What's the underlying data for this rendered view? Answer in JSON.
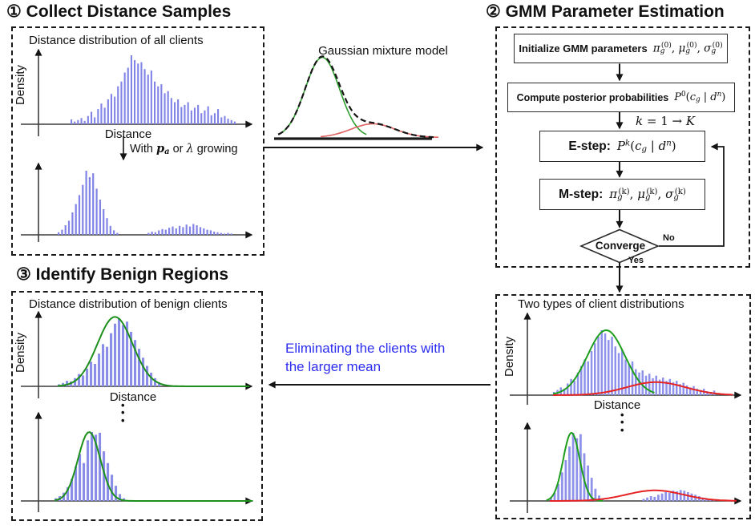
{
  "panels": {
    "collect": {
      "title": "① Collect Distance Samples",
      "plot_label": "Distance distribution of all clients",
      "ylabel": "Density",
      "xlabel": "Distance",
      "transition": [
        {
          "t": "With ",
          "m": "sans"
        },
        {
          "t": "p",
          "m": "bi"
        },
        {
          "t": "a",
          "m": "bsub"
        },
        {
          "t": " or ",
          "m": "sans"
        },
        {
          "t": "λ",
          "m": "i"
        },
        {
          "t": " growing",
          "m": "sans"
        }
      ]
    },
    "mixture": {
      "title": "Gaussian mixture model"
    },
    "gmm": {
      "title": "② GMM Parameter Estimation",
      "box1_label": "Initialize GMM parameters",
      "box1_formula": [
        {
          "t": "π",
          "m": "i"
        },
        {
          "t": "g",
          "m": "sub"
        },
        {
          "t": "(0)",
          "m": "sups"
        },
        {
          "t": ", ",
          "m": "n"
        },
        {
          "t": "μ",
          "m": "i"
        },
        {
          "t": "g",
          "m": "sub"
        },
        {
          "t": "(0)",
          "m": "sups"
        },
        {
          "t": ", ",
          "m": "n"
        },
        {
          "t": "σ",
          "m": "i"
        },
        {
          "t": "g",
          "m": "sub"
        },
        {
          "t": "(0)",
          "m": "sups"
        }
      ],
      "box2_label": "Compute posterior probabilities",
      "box2_formula": [
        {
          "t": "P",
          "m": "i"
        },
        {
          "t": "0",
          "m": "supn"
        },
        {
          "t": "(",
          "m": "n"
        },
        {
          "t": "c",
          "m": "i"
        },
        {
          "t": "g",
          "m": "sub"
        },
        {
          "t": " | ",
          "m": "n"
        },
        {
          "t": "d",
          "m": "i"
        },
        {
          "t": "n",
          "m": "sup"
        },
        {
          "t": ")",
          "m": "n"
        }
      ],
      "loop_label": [
        {
          "t": "k",
          "m": "i"
        },
        {
          "t": " = 1 → ",
          "m": "n"
        },
        {
          "t": "K",
          "m": "i"
        }
      ],
      "estep_label": "E-step:",
      "estep_formula": [
        {
          "t": "P",
          "m": "i"
        },
        {
          "t": "k",
          "m": "sup"
        },
        {
          "t": "(",
          "m": "n"
        },
        {
          "t": "c",
          "m": "i"
        },
        {
          "t": "g",
          "m": "sub"
        },
        {
          "t": " | ",
          "m": "n"
        },
        {
          "t": "d",
          "m": "i"
        },
        {
          "t": "n",
          "m": "sup"
        },
        {
          "t": ")",
          "m": "n"
        }
      ],
      "mstep_label": "M-step:",
      "mstep_formula": [
        {
          "t": "π",
          "m": "i"
        },
        {
          "t": "g",
          "m": "sub"
        },
        {
          "t": "(k)",
          "m": "sups"
        },
        {
          "t": ", ",
          "m": "n"
        },
        {
          "t": "μ",
          "m": "i"
        },
        {
          "t": "g",
          "m": "sub"
        },
        {
          "t": "(k)",
          "m": "sups"
        },
        {
          "t": ", ",
          "m": "n"
        },
        {
          "t": "σ",
          "m": "i"
        },
        {
          "t": "g",
          "m": "sub"
        },
        {
          "t": "(k)",
          "m": "sups"
        }
      ],
      "converge": "Converge",
      "no": "No",
      "yes": "Yes"
    },
    "identify": {
      "title": "③ Identify Benign Regions",
      "plot_label": "Distance distribution of benign clients",
      "ylabel": "Density",
      "xlabel": "Distance",
      "vdots": "•\n•\n•"
    },
    "two_types": {
      "plot_label": "Two types of client distributions",
      "ylabel": "Density",
      "xlabel": "Distance",
      "vdots": "•\n•\n•"
    },
    "eliminate": {
      "caption": "Eliminating the clients with\nthe larger mean",
      "color": "#2d2df0"
    }
  },
  "colors": {
    "histogram_bars": "#8184e6",
    "benign_curve_green": "#1d9e1d",
    "malicious_curve_red": "#e62222",
    "mixture_dashed_black": "#151515",
    "caption_blue": "#2d2df0"
  },
  "charts": {
    "all_clients": {
      "type": "histogram",
      "bar_color": "#8184e6",
      "bw": 0.5,
      "bars": [
        0.07,
        0.04,
        0.06,
        0.09,
        0.05,
        0.12,
        0.18,
        0.1,
        0.22,
        0.3,
        0.24,
        0.36,
        0.44,
        0.4,
        0.55,
        0.62,
        0.75,
        0.82,
        1.0,
        0.93,
        0.88,
        0.9,
        0.8,
        0.72,
        0.78,
        0.62,
        0.55,
        0.58,
        0.45,
        0.48,
        0.38,
        0.32,
        0.36,
        0.25,
        0.28,
        0.32,
        0.2,
        0.24,
        0.28,
        0.16,
        0.2,
        0.26,
        0.13,
        0.16,
        0.22,
        0.1,
        0.12,
        0.08,
        0.06,
        0.04
      ]
    },
    "after_growing": {
      "type": "histogram",
      "bar_color": "#8184e6",
      "bw": 0.5,
      "bars": [
        0.04,
        0.08,
        0.15,
        0.22,
        0.35,
        0.48,
        0.62,
        0.78,
        1.0,
        0.9,
        0.96,
        0.72,
        0.55,
        0.4,
        0.26,
        0.14,
        0.07,
        0.03,
        0,
        0,
        0,
        0,
        0,
        0,
        0,
        0,
        0.03,
        0.05,
        0.04,
        0.07,
        0.09,
        0.08,
        0.11,
        0.13,
        0.1,
        0.14,
        0.12,
        0.16,
        0.13,
        0.17,
        0.15,
        0.12,
        0.1,
        0.08,
        0.07,
        0.05,
        0.04,
        0.03,
        0.02,
        0.03,
        0.02
      ]
    },
    "gmm": {
      "type": "curves",
      "curves": [
        {
          "name": "benign-component",
          "color": "#2f9e2f",
          "mean": 0.29,
          "sigma": 0.105,
          "amp": 1.0,
          "w": 1.6,
          "range": [
            0.02,
            0.56
          ]
        },
        {
          "name": "malicious-component",
          "color": "#e06060",
          "mean": 0.6,
          "sigma": 0.135,
          "amp": 0.17,
          "w": 1.6,
          "range": [
            0.28,
            1.0
          ]
        },
        {
          "name": "mixture",
          "color": "#151515",
          "mixture": true,
          "style": "dashed",
          "w": 2.2,
          "range": [
            0.02,
            0.97
          ]
        }
      ]
    },
    "two_types_top": {
      "type": "histogram+curves",
      "bar_color": "#8f92ea",
      "bw": 0.6,
      "bars": [
        0.05,
        0.08,
        0.12,
        0.1,
        0.18,
        0.25,
        0.22,
        0.35,
        0.45,
        0.55,
        0.52,
        0.68,
        0.8,
        0.9,
        1.0,
        0.95,
        0.85,
        0.9,
        0.75,
        0.65,
        0.7,
        0.55,
        0.48,
        0.52,
        0.4,
        0.35,
        0.38,
        0.3,
        0.33,
        0.26,
        0.3,
        0.24,
        0.27,
        0.22,
        0.25,
        0.2,
        0.22,
        0.17,
        0.19,
        0.15,
        0.12,
        0.14,
        0.1,
        0.08,
        0.1,
        0.06,
        0.05,
        0.07
      ],
      "curves": [
        {
          "name": "benign-fit",
          "color": "#1d9e1d",
          "mean": 0.325,
          "sigma": 0.115,
          "amp": 1.0,
          "w": 2,
          "range": [
            0.0,
            0.62
          ]
        },
        {
          "name": "malicious-fit",
          "color": "#e62222",
          "mean": 0.63,
          "sigma": 0.18,
          "amp": 0.2,
          "w": 2,
          "range": [
            0.0,
            1.1
          ]
        }
      ]
    },
    "two_types_bottom": {
      "type": "histogram+curves",
      "bar_color": "#8f92ea",
      "bw": 0.6,
      "bars": [
        0.05,
        0.12,
        0.25,
        0.42,
        0.6,
        0.8,
        1.0,
        0.92,
        0.98,
        0.7,
        0.52,
        0.34,
        0.18,
        0.08,
        0.03,
        0,
        0,
        0,
        0,
        0,
        0,
        0,
        0,
        0,
        0,
        0.03,
        0.05,
        0.07,
        0.06,
        0.09,
        0.11,
        0.13,
        0.12,
        0.15,
        0.14,
        0.16,
        0.15,
        0.13,
        0.11,
        0.09,
        0.07,
        0.05,
        0.04,
        0.03,
        0.02
      ],
      "curves": [
        {
          "name": "benign-fit",
          "color": "#1d9e1d",
          "mean": 0.13,
          "sigma": 0.05,
          "amp": 1.0,
          "w": 2,
          "range": [
            -0.02,
            0.32
          ]
        },
        {
          "name": "malicious-fit",
          "color": "#e62222",
          "mean": 0.63,
          "sigma": 0.17,
          "amp": 0.155,
          "w": 2,
          "range": [
            0.0,
            1.12
          ]
        }
      ]
    },
    "benign_top": {
      "type": "histogram+curves",
      "bar_color": "#8b8ee8",
      "bw": 0.62,
      "bars": [
        0.03,
        0.05,
        0.08,
        0.07,
        0.12,
        0.18,
        0.16,
        0.26,
        0.36,
        0.33,
        0.48,
        0.62,
        0.58,
        0.78,
        0.92,
        1.0,
        0.9,
        0.95,
        0.8,
        0.68,
        0.55,
        0.42,
        0.3,
        0.2,
        0.12,
        0.06
      ],
      "curves": [
        {
          "name": "benign-fit",
          "color": "#1d8f1d",
          "mean": 0.55,
          "sigma": 0.17,
          "amp": 1.02,
          "w": 2,
          "range": [
            0.0,
            1.84
          ]
        }
      ]
    },
    "benign_bottom": {
      "type": "histogram+curves",
      "bar_color": "#8b8ee8",
      "bw": 0.62,
      "bars": [
        0.04,
        0.07,
        0.12,
        0.2,
        0.32,
        0.5,
        0.68,
        0.55,
        0.88,
        1.0,
        0.96,
        0.99,
        0.72,
        0.55,
        0.38,
        0.22,
        0.1,
        0.04
      ],
      "curves": [
        {
          "name": "benign-fit",
          "color": "#1d8f1d",
          "mean": 0.48,
          "sigma": 0.155,
          "amp": 1.0,
          "w": 2,
          "range": [
            0.0,
            2.75
          ]
        }
      ]
    }
  }
}
